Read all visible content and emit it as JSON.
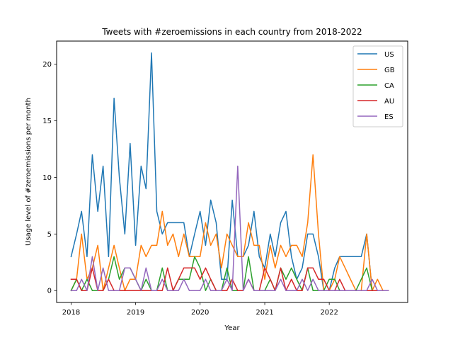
{
  "chart_data": {
    "type": "line",
    "title": "Tweets with #zeroemissions in each country from 2018-2022",
    "xlabel": "Year",
    "ylabel": "Usage level of #zeroemissions per month",
    "xlim": [
      "2017-10-11",
      "2023-03-21"
    ],
    "ylim": [
      -1.05,
      22.05
    ],
    "x_ticks": [
      {
        "value": "2018-01-01",
        "label": "2018"
      },
      {
        "value": "2019-01-01",
        "label": "2019"
      },
      {
        "value": "2020-01-01",
        "label": "2020"
      },
      {
        "value": "2021-01-01",
        "label": "2021"
      },
      {
        "value": "2022-01-01",
        "label": "2022"
      }
    ],
    "y_ticks": [
      0,
      5,
      10,
      15,
      20
    ],
    "legend_position": "top-right",
    "grid": false,
    "x": [
      "2018-01",
      "2018-02",
      "2018-03",
      "2018-04",
      "2018-05",
      "2018-06",
      "2018-07",
      "2018-08",
      "2018-09",
      "2018-10",
      "2018-11",
      "2018-12",
      "2019-01",
      "2019-02",
      "2019-03",
      "2019-04",
      "2019-05",
      "2019-06",
      "2019-07",
      "2019-08",
      "2019-09",
      "2019-10",
      "2019-11",
      "2019-12",
      "2020-01",
      "2020-02",
      "2020-03",
      "2020-04",
      "2020-05",
      "2020-06",
      "2020-07",
      "2020-08",
      "2020-09",
      "2020-10",
      "2020-11",
      "2020-12",
      "2021-01",
      "2021-02",
      "2021-03",
      "2021-04",
      "2021-05",
      "2021-06",
      "2021-07",
      "2021-08",
      "2021-09",
      "2021-10",
      "2021-11",
      "2021-12",
      "2022-01",
      "2022-02",
      "2022-03",
      "2022-04",
      "2022-05",
      "2022-06",
      "2022-07",
      "2022-08",
      "2022-09",
      "2022-10",
      "2022-11",
      "2022-12"
    ],
    "series": [
      {
        "name": "US",
        "color": "#1f77b4",
        "values": [
          3,
          5,
          7,
          3,
          12,
          7,
          11,
          3,
          17,
          10,
          5,
          13,
          4,
          11,
          9,
          21,
          7,
          5,
          6,
          6,
          6,
          6,
          3,
          5,
          7,
          4,
          8,
          6,
          1,
          1,
          8,
          3,
          3,
          4,
          7,
          3,
          2,
          5,
          3,
          6,
          7,
          3,
          1,
          2,
          5,
          5,
          3,
          0,
          0,
          2,
          3,
          3,
          3,
          3,
          3,
          5,
          0,
          0,
          0,
          0
        ]
      },
      {
        "name": "GB",
        "color": "#ff7f0e",
        "values": [
          0,
          1,
          5,
          1,
          2,
          4,
          0,
          2,
          4,
          2,
          0,
          1,
          1,
          4,
          3,
          4,
          4,
          7,
          4,
          5,
          3,
          5,
          3,
          3,
          3,
          6,
          4,
          5,
          2,
          5,
          4,
          3,
          3,
          6,
          4,
          4,
          1,
          4,
          2,
          4,
          3,
          4,
          4,
          3,
          6,
          12,
          5,
          0,
          0,
          1,
          3,
          2,
          1,
          0,
          0,
          5,
          0,
          1,
          0,
          0
        ]
      },
      {
        "name": "CA",
        "color": "#2ca02c",
        "values": [
          0,
          1,
          0,
          1,
          0,
          0,
          0,
          1,
          3,
          1,
          2,
          2,
          1,
          0,
          1,
          0,
          0,
          2,
          0,
          0,
          1,
          1,
          1,
          3,
          2,
          0,
          1,
          0,
          0,
          2,
          0,
          0,
          0,
          3,
          0,
          0,
          0,
          1,
          0,
          2,
          1,
          2,
          1,
          0,
          2,
          0,
          0,
          0,
          1,
          1,
          0,
          0,
          0,
          0,
          1,
          2,
          0,
          0,
          0,
          0
        ]
      },
      {
        "name": "AU",
        "color": "#d62728",
        "values": [
          1,
          1,
          0,
          0,
          2,
          0,
          0,
          1,
          0,
          0,
          0,
          0,
          0,
          0,
          0,
          0,
          0,
          0,
          2,
          0,
          1,
          2,
          2,
          2,
          1,
          2,
          1,
          0,
          0,
          0,
          1,
          0,
          0,
          1,
          0,
          0,
          2,
          1,
          0,
          2,
          0,
          1,
          0,
          0,
          2,
          2,
          1,
          1,
          0,
          0,
          1,
          0,
          0,
          0,
          0,
          0,
          0,
          0,
          0,
          0
        ]
      },
      {
        "name": "ES",
        "color": "#9467bd",
        "values": [
          0,
          0,
          1,
          0,
          3,
          0,
          2,
          0,
          0,
          0,
          2,
          2,
          1,
          0,
          2,
          0,
          0,
          1,
          0,
          0,
          0,
          1,
          0,
          0,
          0,
          1,
          0,
          0,
          0,
          1,
          0,
          11,
          0,
          1,
          0,
          0,
          0,
          0,
          0,
          1,
          0,
          0,
          0,
          1,
          0,
          1,
          0,
          0,
          0,
          0,
          0,
          0,
          0,
          0,
          0,
          0,
          1,
          0,
          0,
          0
        ]
      }
    ]
  }
}
